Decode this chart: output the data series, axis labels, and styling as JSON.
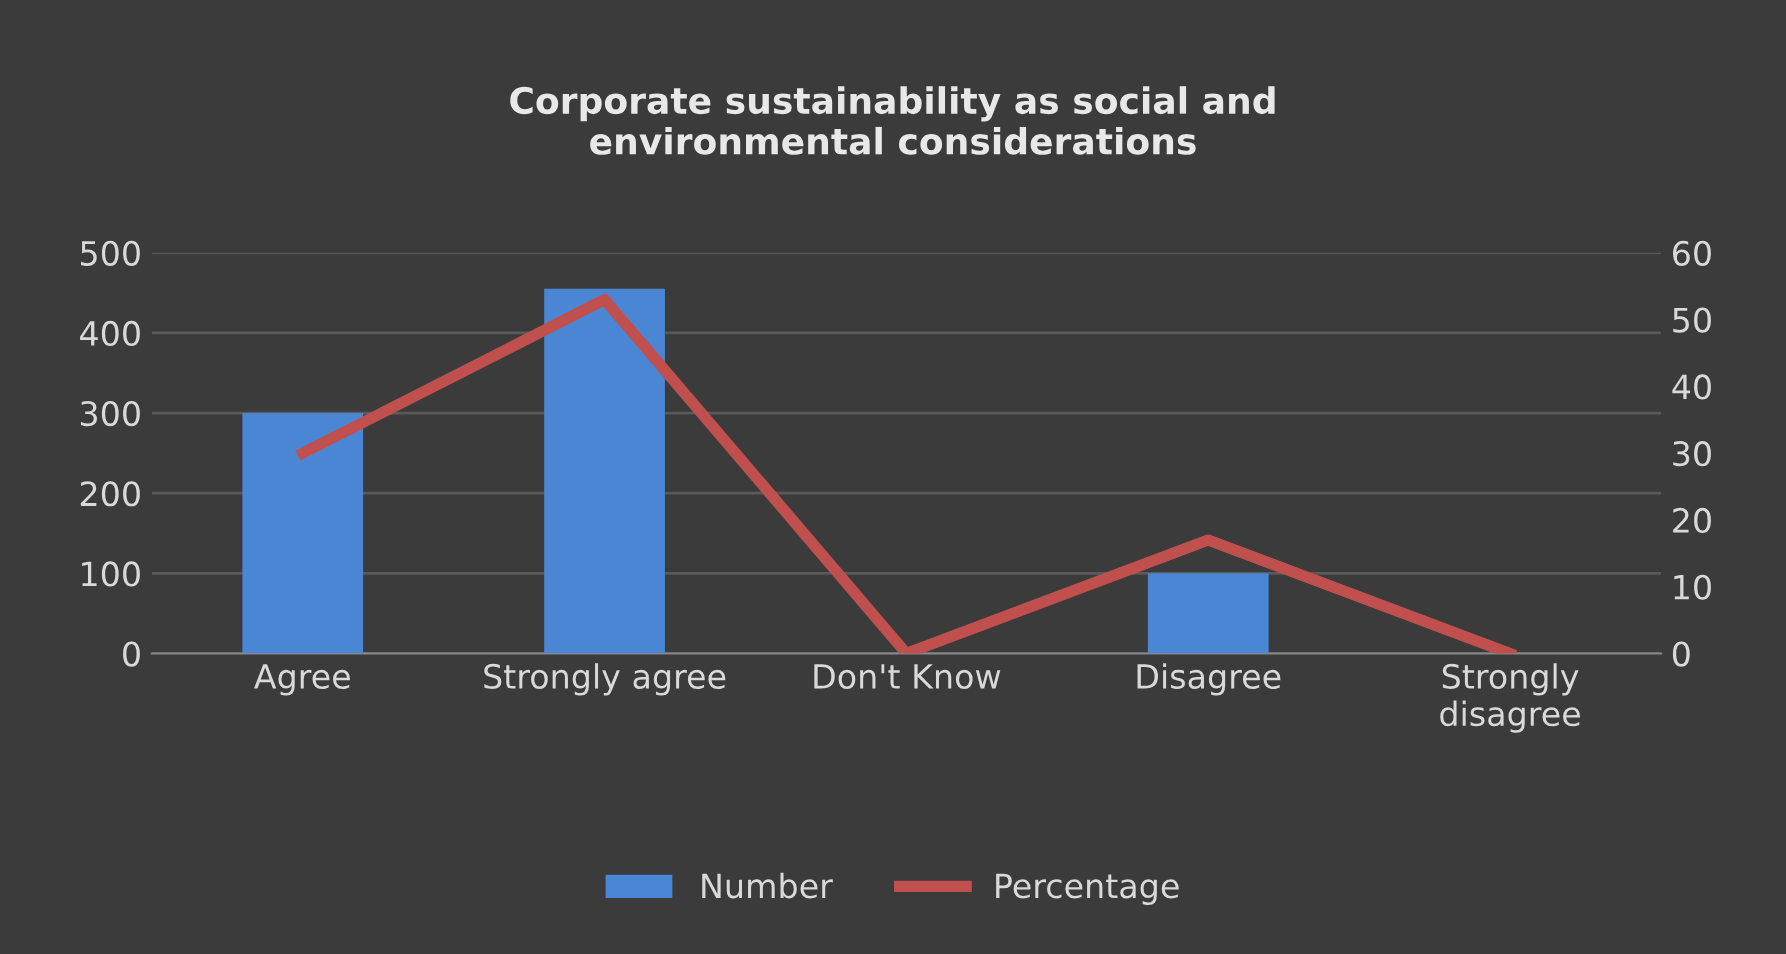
{
  "chart_data": {
    "type": "bar",
    "title": "Corporate sustainability as social and environmental considerations",
    "categories": [
      "Agree",
      "Strongly agree",
      "Don't Know",
      "Disagree",
      "Strongly\ndisagree"
    ],
    "series": [
      {
        "name": "Number",
        "color": "#4a86d4",
        "values": [
          300,
          455,
          0,
          100,
          0
        ]
      },
      {
        "name": "Percentage",
        "type": "line",
        "axis": "y2",
        "color": "#c0504d",
        "values": [
          30,
          53,
          0,
          17,
          0
        ]
      }
    ],
    "ylim": [
      0,
      500
    ],
    "yticks": [
      0,
      100,
      200,
      300,
      400,
      500
    ],
    "y2lim": [
      0,
      60
    ],
    "y2ticks": [
      0,
      10,
      20,
      30,
      40,
      50,
      60
    ],
    "grid": "y",
    "legend": "bottom"
  }
}
